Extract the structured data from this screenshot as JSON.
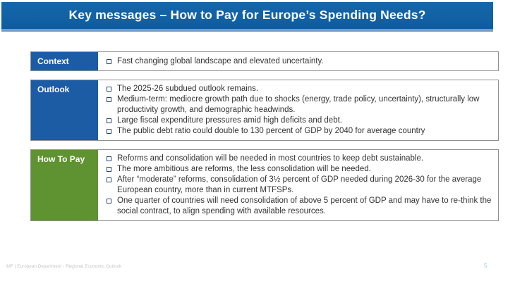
{
  "slide": {
    "title": "Key messages – How to Pay for Europe’s Spending Needs?",
    "colors": {
      "banner_blue": "#1465a9",
      "banner_underline": "#7a9cc2",
      "label_blue": "#1b5ca5",
      "label_green": "#5f9230",
      "bullet_square": "#24456e",
      "body_text": "#333333",
      "row_border": "#8f8f8f",
      "page_number_blue": "#9ec7e6"
    },
    "rows": [
      {
        "label": "Context",
        "label_color": "#1b5ca5",
        "bullets": [
          "Fast changing global landscape and elevated uncertainty."
        ]
      },
      {
        "label": "Outlook",
        "label_color": "#1b5ca5",
        "bullets": [
          "The 2025-26 subdued outlook remains.",
          "Medium-term: mediocre growth path due to shocks (energy, trade policy, uncertainty), structurally low productivity growth, and demographic headwinds.",
          "Large fiscal expenditure pressures amid high deficits and debt.",
          "The public debt ratio could double to 130 percent of GDP by 2040 for average country"
        ]
      },
      {
        "label": "How To Pay",
        "label_color": "#5f9230",
        "bullets": [
          "Reforms and consolidation will be needed in most countries to keep debt sustainable.",
          "The more ambitious are reforms, the less consolidation will be needed.",
          "After “moderate” reforms, consolidation of 3½ percent of GDP needed during 2026-30 for the average European country, more than in current MTFSPs.",
          "One quarter of countries will need consolidation of above 5 percent of GDP and may have to re-think the social contract, to align spending with available resources."
        ]
      }
    ],
    "footer": {
      "left": "IMF | European Department - Regional Economic Outlook",
      "page_number": "5"
    }
  }
}
